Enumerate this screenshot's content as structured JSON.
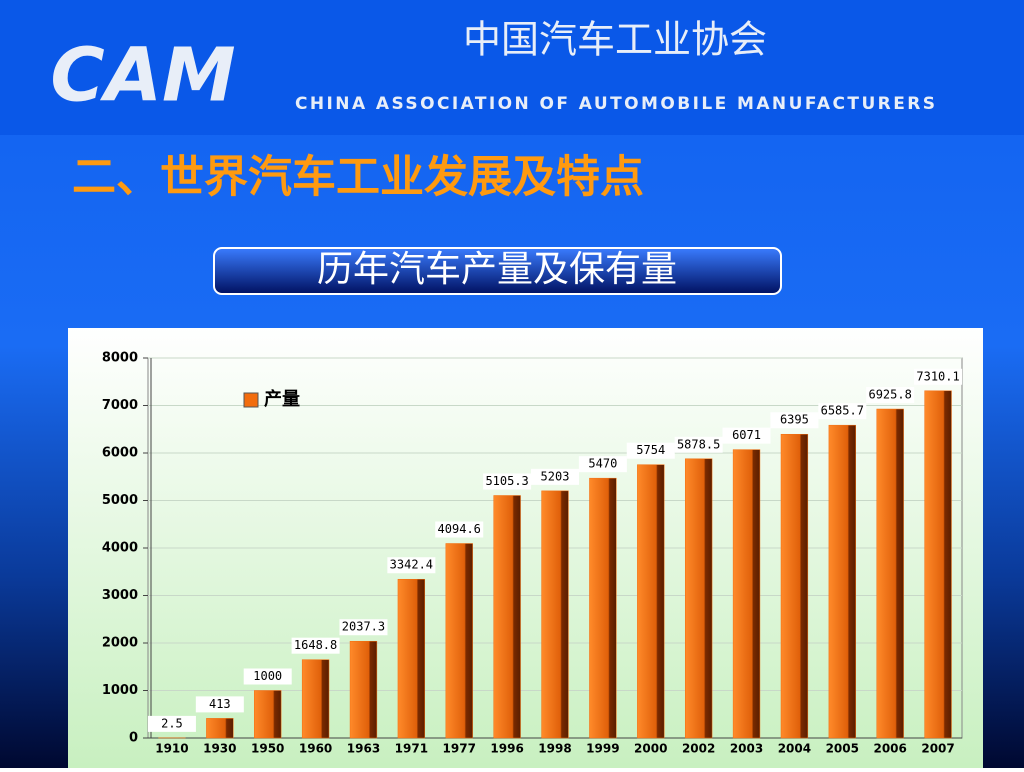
{
  "slide": {
    "logo": "CAM",
    "org_cn": "中国汽车工业协会",
    "org_en": "CHINA ASSOCIATION OF AUTOMOBILE MANUFACTURERS",
    "heading": "二、世界汽车工业发展及特点",
    "subheading": "历年汽车产量及保有量"
  },
  "chart_data": {
    "type": "bar",
    "categories": [
      "1910",
      "1930",
      "1950",
      "1960",
      "1963",
      "1971",
      "1977",
      "1996",
      "1998",
      "1999",
      "2000",
      "2002",
      "2003",
      "2004",
      "2005",
      "2006",
      "2007"
    ],
    "series": [
      {
        "name": "产量",
        "color": "#f26c0d",
        "values": [
          2.5,
          413,
          1000,
          1648.8,
          2037.3,
          3342.4,
          4094.6,
          5105.3,
          5203,
          5470,
          5754,
          5878.5,
          6071,
          6395,
          6585.7,
          6925.8,
          7310.1
        ]
      }
    ],
    "ylim": [
      0,
      8000
    ],
    "yticks": [
      0,
      1000,
      2000,
      3000,
      4000,
      5000,
      6000,
      7000,
      8000
    ],
    "grid": true,
    "legend": "upper left"
  }
}
